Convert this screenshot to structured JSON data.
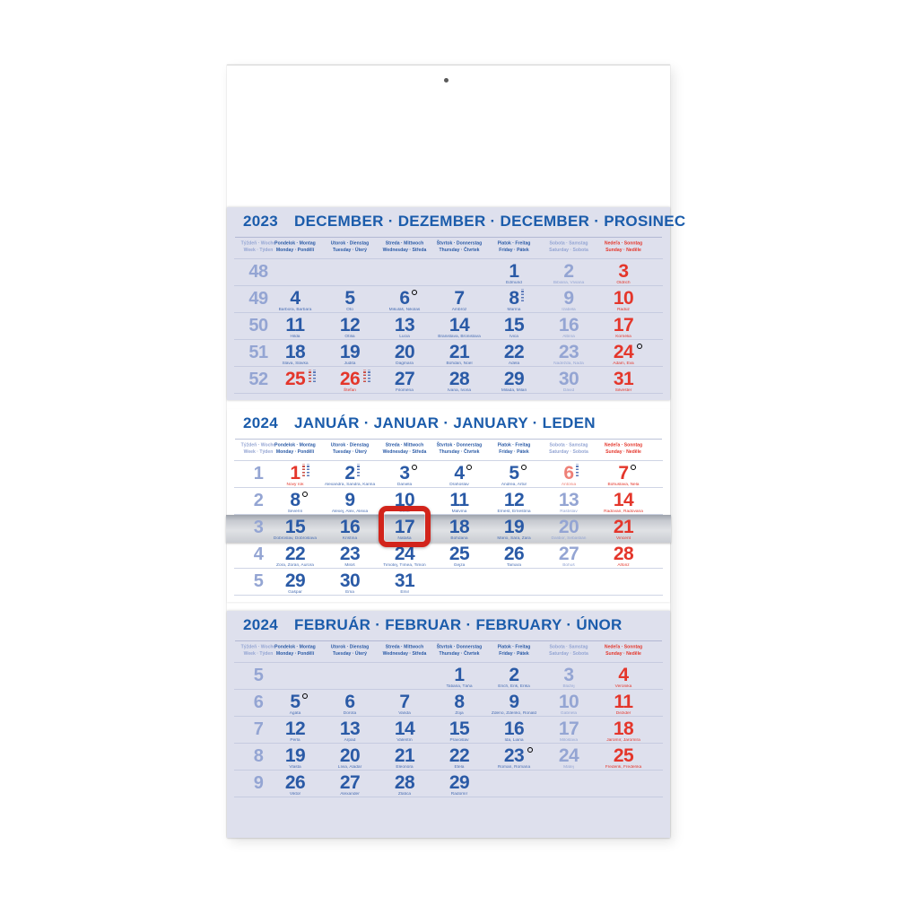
{
  "calendar": {
    "colors": {
      "accent_blue": "#2a5aa6",
      "light_blue": "#94a5d3",
      "red": "#e4362b",
      "light_red": "#ee8077",
      "panel_tint": "#dee0ed",
      "cursor_red": "#d2241b"
    },
    "day_headers": [
      {
        "l1": "Týždeň · Woche",
        "l2": "Week · Týden",
        "t": "mut"
      },
      {
        "l1": "Pondelok · Montag",
        "l2": "Monday · Pondělí"
      },
      {
        "l1": "Utorok · Dienstag",
        "l2": "Tuesday · Úterý"
      },
      {
        "l1": "Streda · Mittwoch",
        "l2": "Wednesday · Středa"
      },
      {
        "l1": "Štvrtok · Donnerstag",
        "l2": "Thursday · Čtvrtek"
      },
      {
        "l1": "Piatok · Freitag",
        "l2": "Friday · Pátek"
      },
      {
        "l1": "Sobota · Samstag",
        "l2": "Saturday · Sobota",
        "t": "mut"
      },
      {
        "l1": "Nedeľa · Sonntag",
        "l2": "Sunday · Neděle",
        "t": "sun"
      }
    ],
    "months": [
      {
        "key": "december",
        "year": "2023",
        "title": "DECEMBER · DEZEMBER · DECEMBER · PROSINEC",
        "weeks": [
          {
            "w": "48",
            "days": [
              null,
              null,
              null,
              null,
              {
                "d": "1",
                "n": "Edmund"
              },
              {
                "d": "2",
                "n": "Bibiána, Viviana",
                "t": "sa"
              },
              {
                "d": "3",
                "n": "Oldrich",
                "t": "su"
              }
            ]
          },
          {
            "w": "49",
            "days": [
              {
                "d": "4",
                "n": "Barbora, Barbara"
              },
              {
                "d": "5",
                "n": "Oto"
              },
              {
                "d": "6",
                "n": "Mikuláš, Nikolas",
                "m": "o"
              },
              {
                "d": "7",
                "n": "Ambróz"
              },
              {
                "d": "8",
                "n": "Marína",
                "m": "s"
              },
              {
                "d": "9",
                "n": "Izabela",
                "t": "sa"
              },
              {
                "d": "10",
                "n": "Radúz",
                "t": "su"
              }
            ]
          },
          {
            "w": "50",
            "days": [
              {
                "d": "11",
                "n": "Hilda"
              },
              {
                "d": "12",
                "n": "Otília"
              },
              {
                "d": "13",
                "n": "Lucia"
              },
              {
                "d": "14",
                "n": "Branislava, Bronislava"
              },
              {
                "d": "15",
                "n": "Ivica"
              },
              {
                "d": "16",
                "n": "Albína",
                "t": "sa"
              },
              {
                "d": "17",
                "n": "Kornélia",
                "t": "su"
              }
            ]
          },
          {
            "w": "51",
            "days": [
              {
                "d": "18",
                "n": "Sláva, Slávka"
              },
              {
                "d": "19",
                "n": "Judita"
              },
              {
                "d": "20",
                "n": "Dagmara"
              },
              {
                "d": "21",
                "n": "Bohdan, Noel"
              },
              {
                "d": "22",
                "n": "Adela"
              },
              {
                "d": "23",
                "n": "Nadežda, Naďa",
                "t": "sa"
              },
              {
                "d": "24",
                "n": "Adam, Eva",
                "t": "su",
                "m": "o"
              }
            ]
          },
          {
            "w": "52",
            "days": [
              {
                "d": "25",
                "n": "",
                "t": "ho",
                "m": "ss"
              },
              {
                "d": "26",
                "n": "Štefan",
                "t": "ho",
                "m": "ss"
              },
              {
                "d": "27",
                "n": "Filoména"
              },
              {
                "d": "28",
                "n": "Ivana, Ivona"
              },
              {
                "d": "29",
                "n": "Milada, Milan"
              },
              {
                "d": "30",
                "n": "Dávid",
                "t": "sa"
              },
              {
                "d": "31",
                "n": "Silvester",
                "t": "su"
              }
            ]
          }
        ]
      },
      {
        "key": "january",
        "year": "2024",
        "title": "JANUÁR · JANUAR · JANUARY · LEDEN",
        "weeks": [
          {
            "w": "1",
            "days": [
              {
                "d": "1",
                "n": "Nový rok",
                "t": "ho",
                "m": "ss"
              },
              {
                "d": "2",
                "n": "Alexandra, Sandra, Karina",
                "m": "s"
              },
              {
                "d": "3",
                "n": "Daniela",
                "m": "o"
              },
              {
                "d": "4",
                "n": "Drahoslav",
                "m": "o"
              },
              {
                "d": "5",
                "n": "Andrea, Artúr",
                "m": "o"
              },
              {
                "d": "6",
                "n": "Antónia",
                "t": "hl",
                "m": "s"
              },
              {
                "d": "7",
                "n": "Bohuslava, Nela",
                "t": "su",
                "m": "o"
              }
            ]
          },
          {
            "w": "2",
            "days": [
              {
                "d": "8",
                "n": "Severín",
                "m": "o"
              },
              {
                "d": "9",
                "n": "Alexej, Alex, Alexia"
              },
              {
                "d": "10",
                "n": "Dáša"
              },
              {
                "d": "11",
                "n": "Malvína"
              },
              {
                "d": "12",
                "n": "Ernest, Ernestína"
              },
              {
                "d": "13",
                "n": "Rastislav",
                "t": "sa"
              },
              {
                "d": "14",
                "n": "Radovan, Radovana",
                "t": "su"
              }
            ]
          },
          {
            "w": "3",
            "days": [
              {
                "d": "15",
                "n": "Dobroslav, Dobroslava"
              },
              {
                "d": "16",
                "n": "Kristína"
              },
              {
                "d": "17",
                "n": "Nataša"
              },
              {
                "d": "18",
                "n": "Bohdana"
              },
              {
                "d": "19",
                "n": "Mário, Sára, Zara"
              },
              {
                "d": "20",
                "n": "Dalibor, Sebastián",
                "t": "sa"
              },
              {
                "d": "21",
                "n": "Vincent",
                "t": "su"
              }
            ]
          },
          {
            "w": "4",
            "days": [
              {
                "d": "22",
                "n": "Zora, Zorán, Aurora"
              },
              {
                "d": "23",
                "n": "Miloš"
              },
              {
                "d": "24",
                "n": "Timotej, Tímea, Timon"
              },
              {
                "d": "25",
                "n": "Gejza"
              },
              {
                "d": "26",
                "n": "Tamara"
              },
              {
                "d": "27",
                "n": "Bohuš",
                "t": "sa"
              },
              {
                "d": "28",
                "n": "Alfonz",
                "t": "su"
              }
            ]
          },
          {
            "w": "5",
            "days": [
              {
                "d": "29",
                "n": "Gašpar"
              },
              {
                "d": "30",
                "n": "Ema"
              },
              {
                "d": "31",
                "n": "Emil"
              },
              null,
              null,
              null,
              null
            ]
          }
        ]
      },
      {
        "key": "february",
        "year": "2024",
        "title": "FEBRUÁR · FEBRUAR · FEBRUARY · ÚNOR",
        "weeks": [
          {
            "w": "5",
            "days": [
              null,
              null,
              null,
              {
                "d": "1",
                "n": "Tatiana, Táňa"
              },
              {
                "d": "2",
                "n": "Erich, Erik, Erika"
              },
              {
                "d": "3",
                "n": "Blažej",
                "t": "sa"
              },
              {
                "d": "4",
                "n": "Veronika",
                "t": "su"
              }
            ]
          },
          {
            "w": "6",
            "days": [
              {
                "d": "5",
                "n": "Agáta",
                "m": "o"
              },
              {
                "d": "6",
                "n": "Dorota"
              },
              {
                "d": "7",
                "n": "Vanda"
              },
              {
                "d": "8",
                "n": "Zoja"
              },
              {
                "d": "9",
                "n": "Zdeno, Zdenko, Ronald"
              },
              {
                "d": "10",
                "n": "Gabriela",
                "t": "sa"
              },
              {
                "d": "11",
                "n": "Dezider",
                "t": "su"
              }
            ]
          },
          {
            "w": "7",
            "days": [
              {
                "d": "12",
                "n": "Perla"
              },
              {
                "d": "13",
                "n": "Arpád"
              },
              {
                "d": "14",
                "n": "Valentín"
              },
              {
                "d": "15",
                "n": "Pravoslav"
              },
              {
                "d": "16",
                "n": "Ida, Liana"
              },
              {
                "d": "17",
                "n": "Miloslava",
                "t": "sa"
              },
              {
                "d": "18",
                "n": "Jaromír, Jaromíra",
                "t": "su"
              }
            ]
          },
          {
            "w": "8",
            "days": [
              {
                "d": "19",
                "n": "Vlasta"
              },
              {
                "d": "20",
                "n": "Lívia, Aladár"
              },
              {
                "d": "21",
                "n": "Eleonóra"
              },
              {
                "d": "22",
                "n": "Etela"
              },
              {
                "d": "23",
                "n": "Roman, Romana",
                "m": "o"
              },
              {
                "d": "24",
                "n": "Matej",
                "t": "sa"
              },
              {
                "d": "25",
                "n": "Frederik, Frederika",
                "t": "su"
              }
            ]
          },
          {
            "w": "9",
            "days": [
              {
                "d": "26",
                "n": "Viktor"
              },
              {
                "d": "27",
                "n": "Alexander"
              },
              {
                "d": "28",
                "n": "Zlatica"
              },
              {
                "d": "29",
                "n": "Radomír"
              },
              null,
              null,
              null
            ]
          }
        ]
      }
    ],
    "slider": {
      "month": "january",
      "week_index": 2
    },
    "cursor": {
      "month": "january",
      "week_index": 2,
      "day_index": 2,
      "marked_day": "17"
    }
  }
}
